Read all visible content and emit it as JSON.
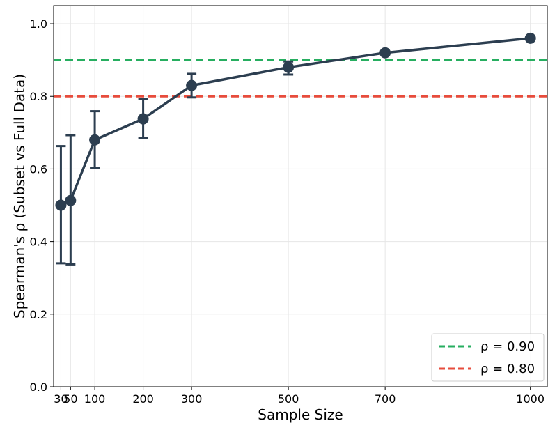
{
  "chart_data": {
    "type": "line",
    "title": "",
    "xlabel": "Sample Size",
    "ylabel": "Spearman's ρ (Subset vs Full Data)",
    "xlim": [
      15,
      1035
    ],
    "ylim": [
      0.0,
      1.05
    ],
    "xticks": [
      30,
      50,
      100,
      200,
      300,
      500,
      700,
      1000
    ],
    "yticks": [
      0.0,
      0.2,
      0.4,
      0.6,
      0.8,
      1.0
    ],
    "x_tick_labels": [
      "30",
      "50",
      "100",
      "200",
      "300",
      "500",
      "700",
      "1000"
    ],
    "y_tick_labels": [
      "0.0",
      "0.2",
      "0.4",
      "0.6",
      "0.8",
      "1.0"
    ],
    "grid": true,
    "series": [
      {
        "x": [
          30,
          50,
          100,
          200,
          300,
          500,
          700,
          1000
        ],
        "y": [
          0.5,
          0.513,
          0.68,
          0.738,
          0.83,
          0.88,
          0.92,
          0.96
        ],
        "err_low": [
          0.34,
          0.337,
          0.602,
          0.686,
          0.797,
          0.86,
          0.92,
          0.96
        ],
        "err_high": [
          0.663,
          0.693,
          0.759,
          0.793,
          0.862,
          0.896,
          0.92,
          0.96
        ],
        "color": "#2c3e50"
      }
    ],
    "reference_lines": [
      {
        "name": "ρ = 0.90",
        "y": 0.9,
        "color": "#27ae60",
        "style": "dashed"
      },
      {
        "name": "ρ = 0.80",
        "y": 0.8,
        "color": "#e74c3c",
        "style": "dashed"
      }
    ],
    "legend": {
      "placement": "bottom-right",
      "entries": [
        "ρ = 0.90",
        "ρ = 0.80"
      ]
    }
  }
}
